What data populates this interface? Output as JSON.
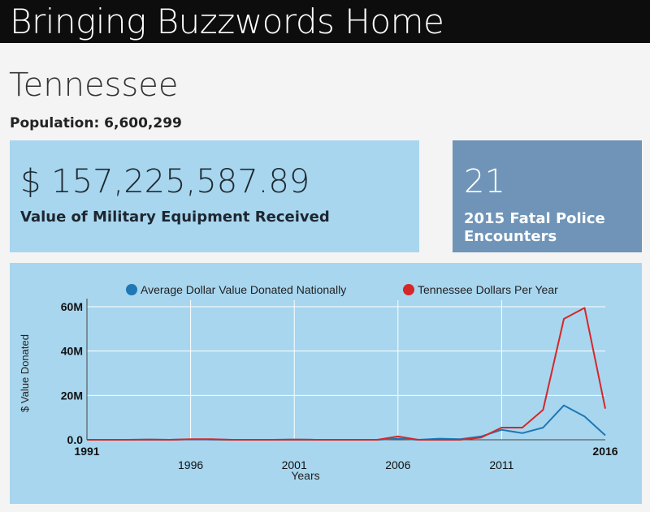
{
  "header": {
    "title": "Bringing Buzzwords Home"
  },
  "state": {
    "name": "Tennessee",
    "population_label": "Population: 6,600,299"
  },
  "military_card": {
    "amount": "$ 157,225,587.89",
    "caption": "Value of Military Equipment Received"
  },
  "police_card": {
    "count": "21",
    "caption": "2015 Fatal Police Encounters",
    "color": "#6f94b8"
  },
  "chart_data": {
    "type": "line",
    "xlabel": "Years",
    "ylabel": "$ Value Donated",
    "xlim": [
      1991,
      2016
    ],
    "ylim": [
      0,
      60000000
    ],
    "x_ticks": [
      "1991",
      "1996",
      "2001",
      "2006",
      "2011",
      "2016"
    ],
    "y_ticks": [
      "0.0",
      "20M",
      "40M",
      "60M"
    ],
    "legend_position": "top",
    "grid": true,
    "x": [
      1991,
      1992,
      1993,
      1994,
      1995,
      1996,
      1997,
      1998,
      1999,
      2000,
      2001,
      2002,
      2003,
      2004,
      2005,
      2006,
      2007,
      2008,
      2009,
      2010,
      2011,
      2012,
      2013,
      2014,
      2015,
      2016
    ],
    "series": [
      {
        "name": "Average Dollar Value Donated Nationally",
        "color": "#1f77b4",
        "values": [
          0,
          0,
          0,
          100000,
          0,
          200000,
          100000,
          0,
          0,
          0,
          100000,
          0,
          0,
          0,
          0,
          500000,
          0,
          500000,
          300000,
          1500000,
          4500000,
          3000000,
          5500000,
          15500000,
          10500000,
          2000000
        ]
      },
      {
        "name": "Tennessee Dollars Per Year",
        "color": "#d62728",
        "values": [
          0,
          0,
          0,
          100000,
          0,
          300000,
          300000,
          0,
          0,
          0,
          100000,
          0,
          0,
          0,
          0,
          1500000,
          0,
          0,
          0,
          1000000,
          5500000,
          5500000,
          13500000,
          54500000,
          59500000,
          14000000
        ]
      }
    ]
  }
}
